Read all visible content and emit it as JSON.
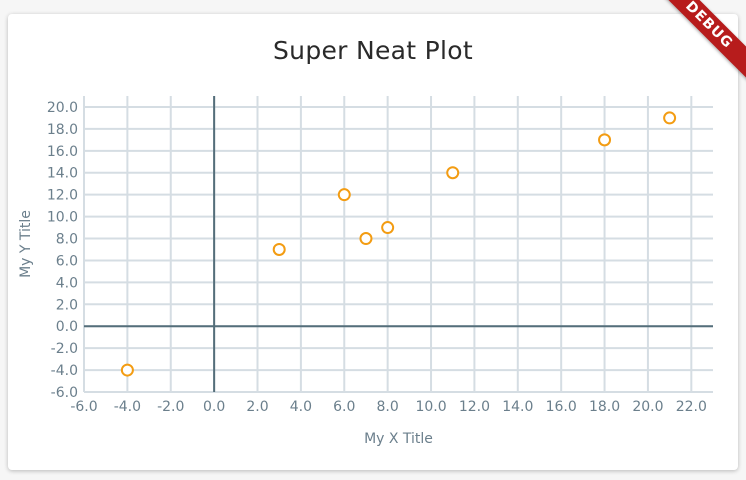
{
  "debug_banner": "DEBUG",
  "chart_data": {
    "type": "scatter",
    "title": "Super Neat Plot",
    "xlabel": "My X Title",
    "ylabel": "My Y Title",
    "xlim": [
      -6,
      23
    ],
    "ylim": [
      -6,
      21
    ],
    "xticks": [
      -6,
      -4,
      -2,
      0,
      2,
      4,
      6,
      8,
      10,
      12,
      14,
      16,
      18,
      20,
      22
    ],
    "yticks": [
      -6,
      -4,
      -2,
      0,
      2,
      4,
      6,
      8,
      10,
      12,
      14,
      16,
      18,
      20
    ],
    "tick_format_decimals": 1,
    "grid": true,
    "colors": {
      "point": "#f39c12",
      "grid": "#d5dde3",
      "axis": "#546e7a",
      "label": "#6b7f8c"
    },
    "series": [
      {
        "x": [
          -4,
          3,
          6,
          7,
          8,
          11,
          18,
          21
        ],
        "y": [
          -4,
          7,
          12,
          8,
          9,
          14,
          17,
          19
        ]
      }
    ]
  }
}
